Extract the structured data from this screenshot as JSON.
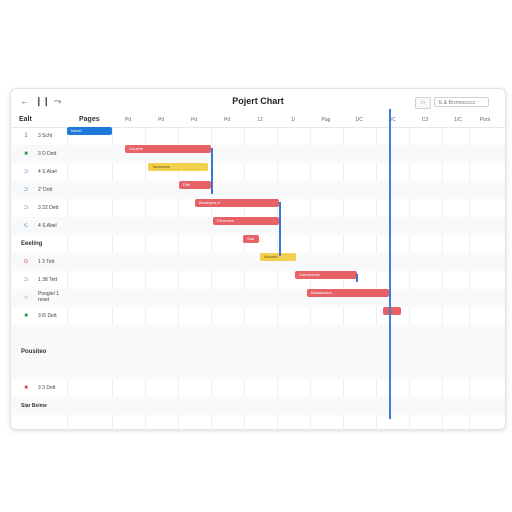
{
  "window": {
    "title": "Pojert Chart"
  },
  "toolbar": {
    "back_icon": "back-arrow-icon",
    "pause_icon": "pause-icon",
    "share_icon": "share-icon",
    "view_button_label": "□",
    "search_placeholder": "E.& Brcmoccccc"
  },
  "header": {
    "name_column": "Ealt",
    "pages_column": "Pages",
    "timeline_columns": [
      "Pd",
      "Pd",
      "Pd",
      "Pd",
      "12",
      "1/",
      "Pag",
      "1/C",
      "1/C",
      "C3",
      "1/C",
      "Poot",
      "Prep"
    ]
  },
  "rows": [
    {
      "icon": "1",
      "icon_color": "#3b6fd6",
      "label": "3 Scht",
      "bar": {
        "label": "Nonel",
        "color": "blue"
      }
    },
    {
      "icon": "■",
      "icon_color": "#2e9d4b",
      "label": "3 D Dett",
      "bar": {
        "label": "Gouche",
        "color": "red"
      }
    },
    {
      "icon": "⊃",
      "icon_color": "#3b6fd6",
      "label": "4 S Abel",
      "bar": {
        "label": "Taoseatse",
        "color": "yellow"
      }
    },
    {
      "icon": "⊃",
      "icon_color": "#3b6fd6",
      "label": "2' Dott",
      "bar": {
        "label": "Etal",
        "color": "red"
      }
    },
    {
      "icon": "⊃",
      "icon_color": "#3b6fd6",
      "label": "3 32 Dett",
      "bar": {
        "label": "Besacpas d",
        "color": "red"
      }
    },
    {
      "icon": "⊂",
      "icon_color": "#3b6fd6",
      "label": "4 S Abel",
      "bar": {
        "label": "Feronsee",
        "color": "red"
      }
    },
    {
      "group": "Eeeling",
      "bar": {
        "label": "Sab",
        "color": "red"
      }
    },
    {
      "icon": "⊙",
      "icon_color": "#d94b4b",
      "label": "1 3 Tett",
      "bar": {
        "label": "Atosate",
        "color": "yellow"
      }
    },
    {
      "icon": "⊃",
      "icon_color": "#d94b4b",
      "label": "1 38 Tett",
      "bar": {
        "label": "Catosssose",
        "color": "red"
      }
    },
    {
      "icon": "○",
      "icon_color": "#d94b4b",
      "label": "Poogiel 1 reset",
      "bar": {
        "label": "Bosstoasce",
        "color": "red"
      }
    },
    {
      "icon": "■",
      "icon_color": "#2e9d4b",
      "label": "3 i5 Dett",
      "bar": {
        "label": "",
        "color": "red"
      }
    },
    {
      "group": "Pousiteo"
    },
    {
      "icon": "■",
      "icon_color": "#d94b4b",
      "label": "3 3 Dett"
    },
    {
      "group": "Siar Beime"
    }
  ]
}
